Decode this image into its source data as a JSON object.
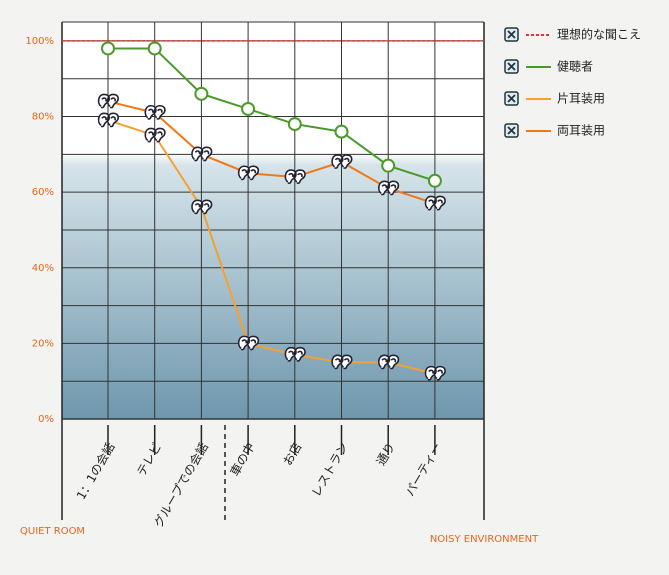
{
  "chart_data": {
    "type": "line",
    "categories": [
      "1：1の会話",
      "テレビ",
      "グループでの会話",
      "車の中",
      "お店",
      "レストラン",
      "通り",
      "パーティー"
    ],
    "ylim": [
      0,
      105
    ],
    "yticks": [
      {
        "value": 0,
        "label": "0%"
      },
      {
        "value": 20,
        "label": "20%"
      },
      {
        "value": 40,
        "label": "40%"
      },
      {
        "value": 60,
        "label": "60%"
      },
      {
        "value": 80,
        "label": "80%"
      },
      {
        "value": 100,
        "label": "100%"
      }
    ],
    "minor_yticks": [
      10,
      30,
      50,
      70,
      90
    ],
    "grid": true,
    "legend": "right",
    "reference": {
      "name": "理想的な聞こえ",
      "color": "#e8322a",
      "value": 100
    },
    "series": [
      {
        "name": "健聴者",
        "color": "#4a9a2a",
        "marker": "circle",
        "values": [
          98,
          98,
          86,
          82,
          78,
          76,
          67,
          63
        ]
      },
      {
        "name": "片耳装用",
        "color": "#f5a030",
        "marker": "ear",
        "values": [
          79,
          75,
          56,
          20,
          17,
          15,
          15,
          12
        ]
      },
      {
        "name": "両耳装用",
        "color": "#f07818",
        "marker": "ear",
        "values": [
          84,
          81,
          70,
          65,
          64,
          68,
          61,
          57
        ]
      }
    ],
    "x_start_label": "QUIET ROOM",
    "x_end_label": "NOISY ENVIRONMENT"
  }
}
